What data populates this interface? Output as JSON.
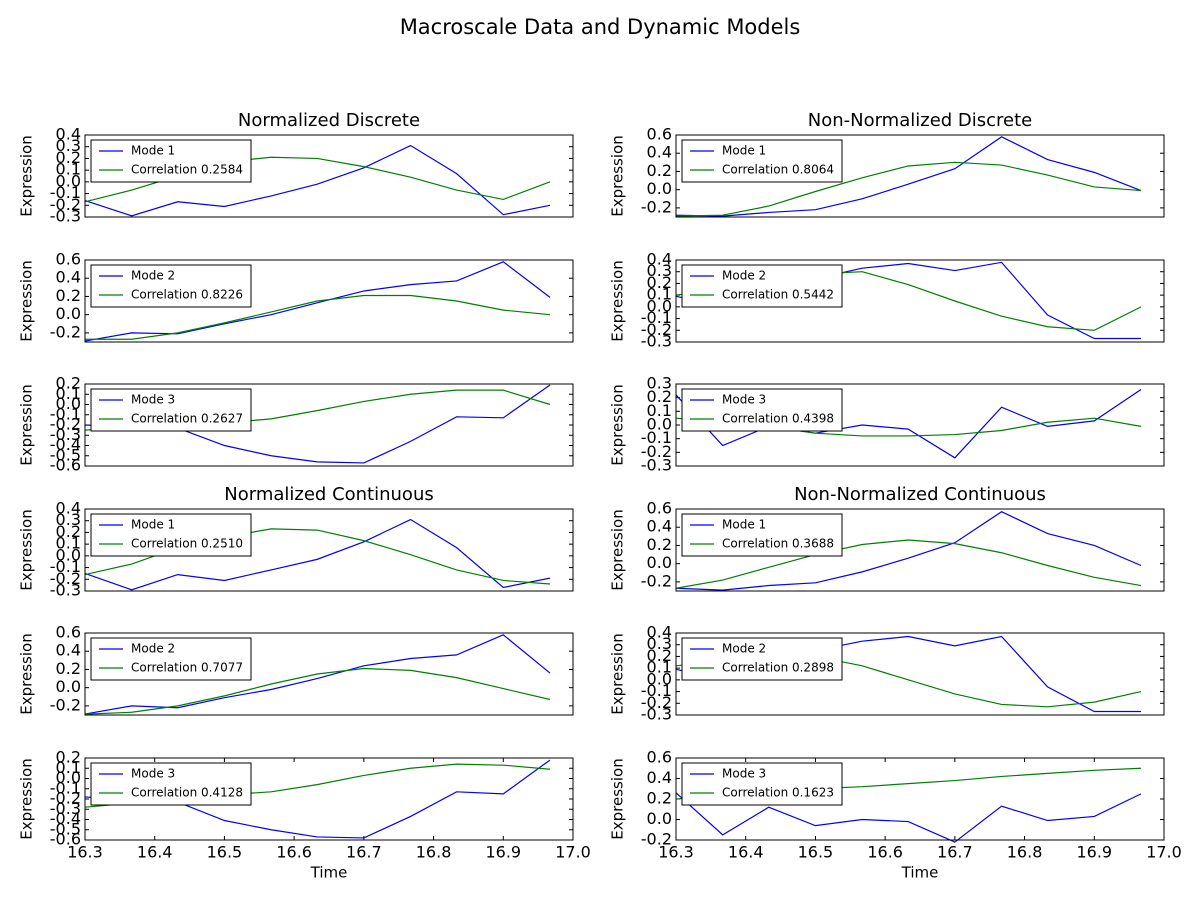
{
  "title": "Macroscale Data and Dynamic Models",
  "chart_data": [
    {
      "type": "line",
      "title": "Normalized Discrete",
      "ylabel": "Expression",
      "legend": "upper left",
      "x": [
        16.3,
        16.367,
        16.433,
        16.5,
        16.567,
        16.633,
        16.7,
        16.767,
        16.833,
        16.9,
        16.967
      ],
      "xlim": [
        16.3,
        17.0
      ],
      "ylim": [
        -0.3,
        0.4
      ],
      "yticks": [
        -0.3,
        -0.2,
        -0.1,
        {
          "value": 0,
          "label": "0.0"
        },
        0.1,
        0.2,
        0.3,
        0.4
      ],
      "series": [
        {
          "name": "Mode 1",
          "color": "#0000ff",
          "values": [
            -0.16,
            -0.29,
            -0.17,
            -0.21,
            -0.12,
            -0.02,
            0.12,
            0.31,
            0.07,
            -0.28,
            -0.2
          ]
        },
        {
          "name": "Correlation 0.2584",
          "color": "#008000",
          "values": [
            -0.17,
            -0.07,
            0.05,
            0.17,
            0.21,
            0.2,
            0.13,
            0.04,
            -0.07,
            -0.15,
            0.0
          ]
        }
      ]
    },
    {
      "type": "line",
      "title": "Non-Normalized Discrete",
      "ylabel": "Expression",
      "legend": "upper left",
      "x": [
        16.3,
        16.367,
        16.433,
        16.5,
        16.567,
        16.633,
        16.7,
        16.767,
        16.833,
        16.9,
        16.967
      ],
      "xlim": [
        16.3,
        17.0
      ],
      "ylim": [
        -0.3,
        0.6
      ],
      "yticks": [
        -0.2,
        {
          "value": 0,
          "label": "0.0"
        },
        0.2,
        0.4,
        0.6
      ],
      "series": [
        {
          "name": "Mode 1",
          "color": "#0000ff",
          "values": [
            -0.28,
            -0.29,
            -0.25,
            -0.22,
            -0.1,
            0.06,
            0.23,
            0.58,
            0.33,
            0.19,
            -0.01
          ]
        },
        {
          "name": "Correlation 0.8064",
          "color": "#008000",
          "values": [
            -0.29,
            -0.28,
            -0.18,
            -0.02,
            0.13,
            0.26,
            0.3,
            0.27,
            0.16,
            0.03,
            -0.01
          ]
        }
      ]
    },
    {
      "type": "line",
      "ylabel": "Expression",
      "legend": "upper left",
      "x": [
        16.3,
        16.367,
        16.433,
        16.5,
        16.567,
        16.633,
        16.7,
        16.767,
        16.833,
        16.9,
        16.967
      ],
      "xlim": [
        16.3,
        17.0
      ],
      "ylim": [
        -0.3,
        0.6
      ],
      "yticks": [
        -0.2,
        {
          "value": 0,
          "label": "0.0"
        },
        0.2,
        0.4,
        0.6
      ],
      "series": [
        {
          "name": "Mode 2",
          "color": "#0000ff",
          "values": [
            -0.29,
            -0.2,
            -0.21,
            -0.1,
            0.0,
            0.13,
            0.26,
            0.33,
            0.37,
            0.58,
            0.19
          ]
        },
        {
          "name": "Correlation 0.8226",
          "color": "#008000",
          "values": [
            -0.27,
            -0.27,
            -0.2,
            -0.09,
            0.03,
            0.15,
            0.21,
            0.21,
            0.15,
            0.05,
            0.0
          ]
        }
      ]
    },
    {
      "type": "line",
      "ylabel": "Expression",
      "legend": "upper left",
      "x": [
        16.3,
        16.367,
        16.433,
        16.5,
        16.567,
        16.633,
        16.7,
        16.767,
        16.833,
        16.9,
        16.967
      ],
      "xlim": [
        16.3,
        17.0
      ],
      "ylim": [
        -0.3,
        0.4
      ],
      "yticks": [
        -0.3,
        -0.2,
        -0.1,
        {
          "value": 0,
          "label": "0.0"
        },
        0.1,
        0.2,
        0.3,
        0.4
      ],
      "series": [
        {
          "name": "Mode 2",
          "color": "#0000ff",
          "values": [
            0.09,
            0.01,
            0.12,
            0.24,
            0.33,
            0.37,
            0.31,
            0.38,
            -0.07,
            -0.27,
            -0.27
          ]
        },
        {
          "name": "Correlation 0.5442",
          "color": "#008000",
          "values": [
            0.1,
            0.15,
            0.22,
            0.28,
            0.3,
            0.19,
            0.05,
            -0.08,
            -0.17,
            -0.2,
            0.0
          ]
        }
      ]
    },
    {
      "type": "line",
      "ylabel": "Expression",
      "legend": "upper left",
      "x": [
        16.3,
        16.367,
        16.433,
        16.5,
        16.567,
        16.633,
        16.7,
        16.767,
        16.833,
        16.9,
        16.967
      ],
      "xlim": [
        16.3,
        17.0
      ],
      "ylim": [
        -0.6,
        0.2
      ],
      "yticks": [
        -0.6,
        -0.5,
        -0.4,
        -0.3,
        -0.2,
        -0.1,
        {
          "value": 0,
          "label": "0.0"
        },
        0.1,
        0.2
      ],
      "series": [
        {
          "name": "Mode 3",
          "color": "#0000ff",
          "values": [
            -0.2,
            -0.22,
            -0.23,
            -0.4,
            -0.5,
            -0.56,
            -0.57,
            -0.36,
            -0.12,
            -0.13,
            0.19
          ]
        },
        {
          "name": "Correlation 0.2627",
          "color": "#008000",
          "values": [
            -0.25,
            -0.22,
            -0.2,
            -0.18,
            -0.14,
            -0.06,
            0.03,
            0.1,
            0.14,
            0.14,
            0.0
          ]
        }
      ]
    },
    {
      "type": "line",
      "ylabel": "Expression",
      "legend": "upper left",
      "x": [
        16.3,
        16.367,
        16.433,
        16.5,
        16.567,
        16.633,
        16.7,
        16.767,
        16.833,
        16.9,
        16.967
      ],
      "xlim": [
        16.3,
        17.0
      ],
      "ylim": [
        -0.3,
        0.3
      ],
      "yticks": [
        -0.3,
        -0.2,
        -0.1,
        {
          "value": 0,
          "label": "0.0"
        },
        0.1,
        0.2,
        0.3
      ],
      "series": [
        {
          "name": "Mode 3",
          "color": "#0000ff",
          "values": [
            0.22,
            -0.15,
            -0.01,
            -0.06,
            0.0,
            -0.03,
            -0.24,
            0.13,
            -0.01,
            0.03,
            0.26
          ]
        },
        {
          "name": "Correlation 0.4398",
          "color": "#008000",
          "values": [
            0.05,
            0.02,
            -0.01,
            -0.06,
            -0.08,
            -0.08,
            -0.07,
            -0.04,
            0.02,
            0.05,
            -0.01
          ]
        }
      ]
    },
    {
      "type": "line",
      "title": "Normalized Continuous",
      "ylabel": "Expression",
      "legend": "upper left",
      "x": [
        16.3,
        16.367,
        16.433,
        16.5,
        16.567,
        16.633,
        16.7,
        16.767,
        16.833,
        16.9,
        16.967
      ],
      "xlim": [
        16.3,
        17.0
      ],
      "ylim": [
        -0.3,
        0.4
      ],
      "yticks": [
        -0.3,
        -0.2,
        -0.1,
        {
          "value": 0,
          "label": "0.0"
        },
        0.1,
        0.2,
        0.3,
        0.4
      ],
      "series": [
        {
          "name": "Mode 1",
          "color": "#0000ff",
          "values": [
            -0.15,
            -0.29,
            -0.16,
            -0.21,
            -0.12,
            -0.03,
            0.12,
            0.31,
            0.07,
            -0.27,
            -0.19
          ]
        },
        {
          "name": "Correlation 0.2510",
          "color": "#008000",
          "values": [
            -0.16,
            -0.07,
            0.07,
            0.16,
            0.23,
            0.22,
            0.13,
            0.01,
            -0.12,
            -0.21,
            -0.24
          ]
        }
      ]
    },
    {
      "type": "line",
      "title": "Non-Normalized Continuous",
      "ylabel": "Expression",
      "legend": "upper left",
      "x": [
        16.3,
        16.367,
        16.433,
        16.5,
        16.567,
        16.633,
        16.7,
        16.767,
        16.833,
        16.9,
        16.967
      ],
      "xlim": [
        16.3,
        17.0
      ],
      "ylim": [
        -0.3,
        0.6
      ],
      "yticks": [
        -0.2,
        {
          "value": 0,
          "label": "0.0"
        },
        0.2,
        0.4,
        0.6
      ],
      "series": [
        {
          "name": "Mode 1",
          "color": "#0000ff",
          "values": [
            -0.27,
            -0.29,
            -0.24,
            -0.21,
            -0.09,
            0.06,
            0.23,
            0.57,
            0.33,
            0.2,
            -0.02
          ]
        },
        {
          "name": "Correlation 0.3688",
          "color": "#008000",
          "values": [
            -0.27,
            -0.18,
            -0.04,
            0.1,
            0.21,
            0.26,
            0.22,
            0.12,
            -0.02,
            -0.15,
            -0.24
          ]
        }
      ]
    },
    {
      "type": "line",
      "ylabel": "Expression",
      "legend": "upper left",
      "x": [
        16.3,
        16.367,
        16.433,
        16.5,
        16.567,
        16.633,
        16.7,
        16.767,
        16.833,
        16.9,
        16.967
      ],
      "xlim": [
        16.3,
        17.0
      ],
      "ylim": [
        -0.3,
        0.6
      ],
      "yticks": [
        -0.2,
        {
          "value": 0,
          "label": "0.0"
        },
        0.2,
        0.4,
        0.6
      ],
      "series": [
        {
          "name": "Mode 2",
          "color": "#0000ff",
          "values": [
            -0.29,
            -0.2,
            -0.22,
            -0.11,
            -0.02,
            0.1,
            0.24,
            0.32,
            0.36,
            0.58,
            0.16
          ]
        },
        {
          "name": "Correlation 0.7077",
          "color": "#008000",
          "values": [
            -0.29,
            -0.27,
            -0.2,
            -0.09,
            0.04,
            0.15,
            0.21,
            0.19,
            0.11,
            -0.01,
            -0.13
          ]
        }
      ]
    },
    {
      "type": "line",
      "ylabel": "Expression",
      "legend": "upper left",
      "x": [
        16.3,
        16.367,
        16.433,
        16.5,
        16.567,
        16.633,
        16.7,
        16.767,
        16.833,
        16.9,
        16.967
      ],
      "xlim": [
        16.3,
        17.0
      ],
      "ylim": [
        -0.3,
        0.4
      ],
      "yticks": [
        -0.3,
        -0.2,
        -0.1,
        {
          "value": 0,
          "label": "0.0"
        },
        0.1,
        0.2,
        0.3,
        0.4
      ],
      "series": [
        {
          "name": "Mode 2",
          "color": "#0000ff",
          "values": [
            0.09,
            0.0,
            0.12,
            0.25,
            0.33,
            0.37,
            0.29,
            0.37,
            -0.06,
            -0.27,
            -0.27
          ]
        },
        {
          "name": "Correlation 0.2898",
          "color": "#008000",
          "values": [
            0.12,
            0.16,
            0.19,
            0.2,
            0.12,
            0.0,
            -0.12,
            -0.21,
            -0.23,
            -0.19,
            -0.1
          ]
        }
      ]
    },
    {
      "type": "line",
      "ylabel": "Expression",
      "legend": "upper left",
      "x": [
        16.3,
        16.367,
        16.433,
        16.5,
        16.567,
        16.633,
        16.7,
        16.767,
        16.833,
        16.9,
        16.967
      ],
      "xlim": [
        16.3,
        17.0
      ],
      "xlabel": "Time",
      "xticks": [
        16.3,
        16.4,
        16.5,
        16.6,
        16.7,
        16.8,
        16.9,
        {
          "value": 17,
          "label": "17.0"
        }
      ],
      "ylim": [
        -0.6,
        0.2
      ],
      "yticks": [
        -0.6,
        -0.5,
        -0.4,
        -0.3,
        -0.2,
        -0.1,
        {
          "value": 0,
          "label": "0.0"
        },
        0.1,
        0.2
      ],
      "series": [
        {
          "name": "Mode 3",
          "color": "#0000ff",
          "values": [
            -0.18,
            -0.21,
            -0.23,
            -0.41,
            -0.5,
            -0.57,
            -0.58,
            -0.37,
            -0.13,
            -0.15,
            0.18
          ]
        },
        {
          "name": "Correlation 0.4128",
          "color": "#008000",
          "values": [
            -0.28,
            -0.24,
            -0.2,
            -0.16,
            -0.13,
            -0.06,
            0.03,
            0.1,
            0.14,
            0.13,
            0.09
          ]
        }
      ]
    },
    {
      "type": "line",
      "ylabel": "Expression",
      "legend": "upper left",
      "x": [
        16.3,
        16.367,
        16.433,
        16.5,
        16.567,
        16.633,
        16.7,
        16.767,
        16.833,
        16.9,
        16.967
      ],
      "xlim": [
        16.3,
        17.0
      ],
      "xlabel": "Time",
      "xticks": [
        16.3,
        16.4,
        16.5,
        16.6,
        16.7,
        16.8,
        16.9,
        {
          "value": 17,
          "label": "17.0"
        }
      ],
      "ylim": [
        -0.2,
        0.6
      ],
      "yticks": [
        -0.2,
        {
          "value": 0,
          "label": "0.0"
        },
        0.2,
        0.4,
        0.6
      ],
      "series": [
        {
          "name": "Mode 3",
          "color": "#0000ff",
          "values": [
            0.26,
            -0.15,
            0.12,
            -0.06,
            0.0,
            -0.02,
            -0.22,
            0.13,
            -0.01,
            0.03,
            0.25
          ]
        },
        {
          "name": "Correlation 0.1623",
          "color": "#008000",
          "values": [
            0.2,
            0.23,
            0.27,
            0.3,
            0.32,
            0.35,
            0.38,
            0.42,
            0.45,
            0.48,
            0.5
          ]
        }
      ]
    }
  ]
}
